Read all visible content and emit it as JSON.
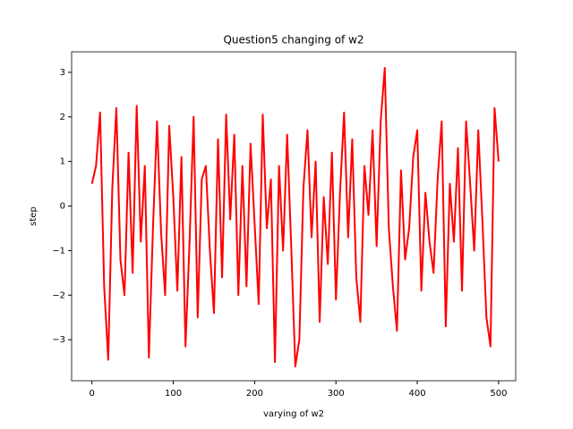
{
  "chart_data": {
    "type": "line",
    "title": "Question5 changing of w2",
    "xlabel": "varying of w2",
    "ylabel": "step",
    "x": [
      0,
      5,
      10,
      15,
      20,
      25,
      30,
      35,
      40,
      45,
      50,
      55,
      60,
      65,
      70,
      75,
      80,
      85,
      90,
      95,
      100,
      105,
      110,
      115,
      120,
      125,
      130,
      135,
      140,
      145,
      150,
      155,
      160,
      165,
      170,
      175,
      180,
      185,
      190,
      195,
      200,
      205,
      210,
      215,
      220,
      225,
      230,
      235,
      240,
      245,
      250,
      255,
      260,
      265,
      270,
      275,
      280,
      285,
      290,
      295,
      300,
      305,
      310,
      315,
      320,
      325,
      330,
      335,
      340,
      345,
      350,
      355,
      360,
      365,
      370,
      375,
      380,
      385,
      390,
      395,
      400,
      405,
      410,
      415,
      420,
      425,
      430,
      435,
      440,
      445,
      450,
      455,
      460,
      465,
      470,
      475,
      480,
      485,
      490,
      495,
      500
    ],
    "series": [
      {
        "name": "step",
        "color": "#ff0000",
        "values": [
          0.5,
          0.9,
          2.1,
          -1.8,
          -3.45,
          0.4,
          2.2,
          -1.2,
          -2.0,
          1.2,
          -1.5,
          2.25,
          -0.8,
          0.9,
          -3.4,
          -0.5,
          1.9,
          -0.6,
          -2.0,
          1.8,
          0.2,
          -1.9,
          1.1,
          -3.15,
          -0.8,
          2.0,
          -2.5,
          0.6,
          0.9,
          -1.0,
          -2.4,
          1.5,
          -1.6,
          2.05,
          -0.3,
          1.6,
          -2.0,
          0.9,
          -1.8,
          1.4,
          -0.4,
          -2.2,
          2.05,
          -0.5,
          0.6,
          -3.5,
          0.9,
          -1.0,
          1.6,
          -0.9,
          -3.6,
          -3.0,
          0.4,
          1.7,
          -0.7,
          1.0,
          -2.6,
          0.2,
          -1.3,
          1.2,
          -2.1,
          0.3,
          2.1,
          -0.7,
          1.5,
          -1.6,
          -2.6,
          0.9,
          -0.2,
          1.7,
          -0.9,
          1.9,
          3.1,
          -0.5,
          -1.8,
          -2.8,
          0.8,
          -1.2,
          -0.5,
          1.1,
          1.7,
          -1.9,
          0.3,
          -0.8,
          -1.5,
          0.6,
          1.9,
          -2.7,
          0.5,
          -0.8,
          1.3,
          -1.9,
          1.9,
          0.5,
          -1.0,
          1.7,
          -0.3,
          -2.5,
          -3.15,
          2.2,
          1.0
        ]
      }
    ],
    "xlim": [
      -25,
      521
    ],
    "ylim": [
      -3.92,
      3.46
    ],
    "xticks": [
      0,
      100,
      200,
      300,
      400,
      500
    ],
    "yticks": [
      {
        "value": -3,
        "label": "−3"
      },
      {
        "value": -2,
        "label": "−2"
      },
      {
        "value": -1,
        "label": "−1"
      },
      0,
      1,
      2,
      3
    ],
    "grid": false
  }
}
